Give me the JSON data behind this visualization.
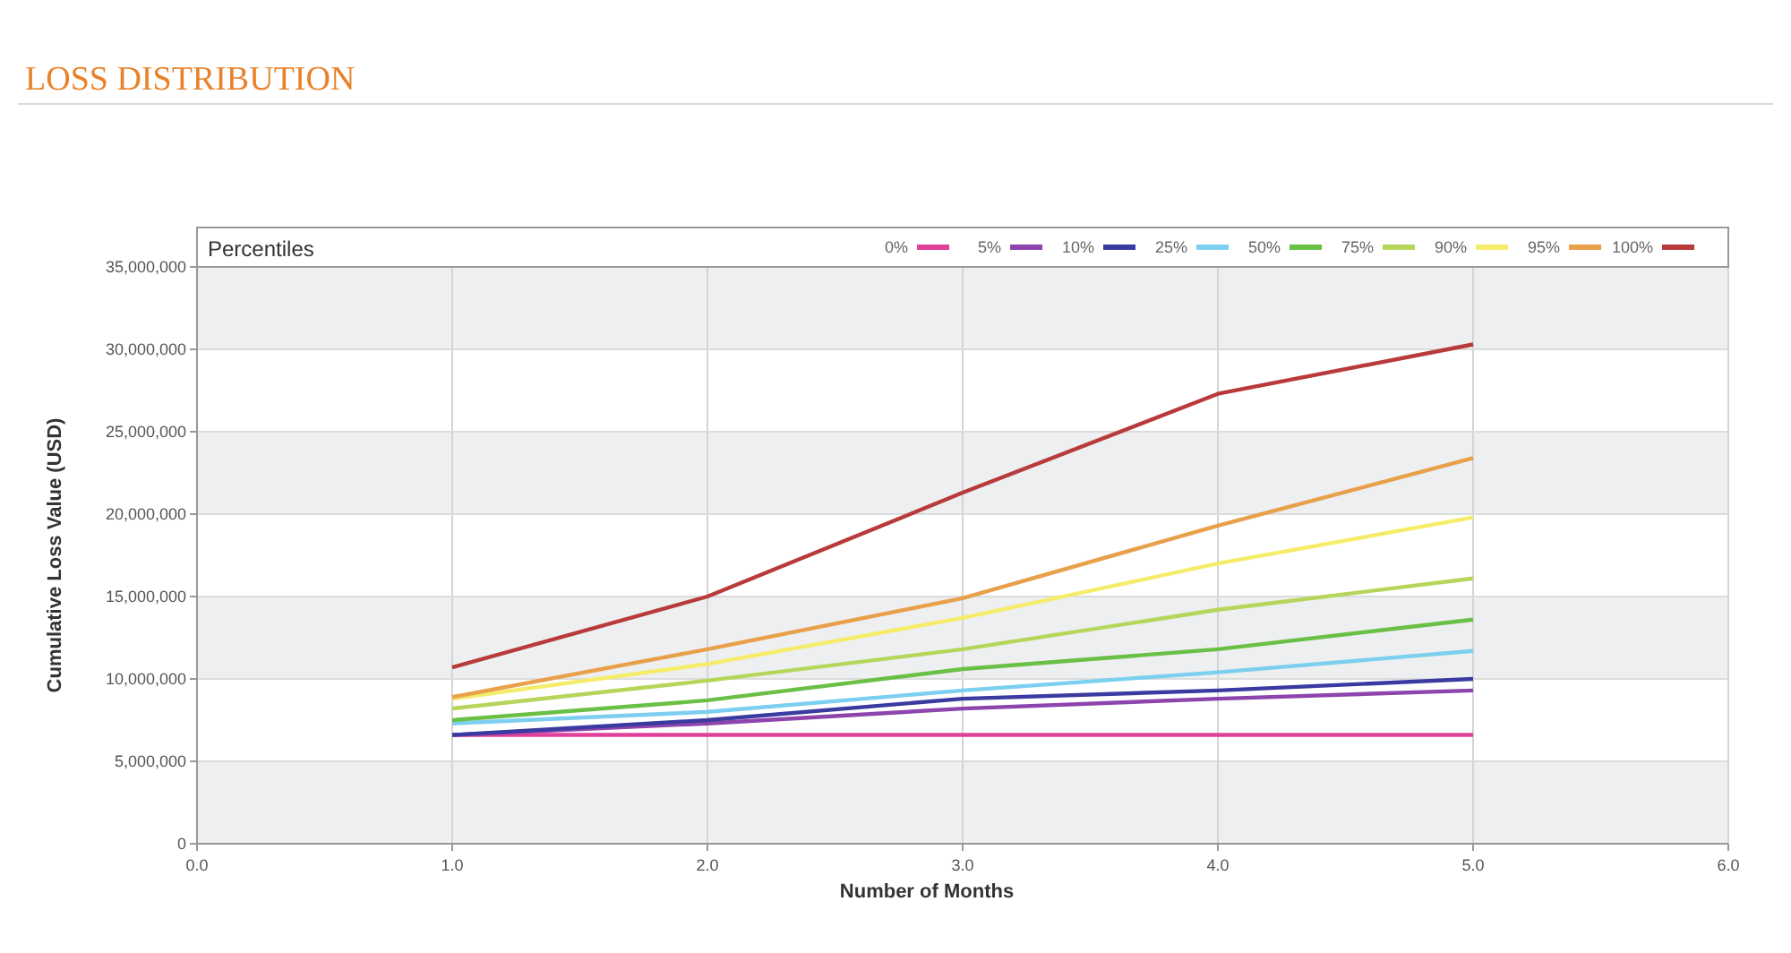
{
  "chart_data": {
    "type": "line",
    "title": "LOSS DISTRIBUTION",
    "legend_title": "Percentiles",
    "xlabel": "Number of Months",
    "ylabel": "Cumulative Loss Value (USD)",
    "x": [
      1,
      2,
      3,
      4,
      5
    ],
    "series": [
      {
        "name": "0%",
        "color": "#e0409a",
        "values": [
          6600000,
          6600000,
          6600000,
          6600000,
          6600000
        ]
      },
      {
        "name": "5%",
        "color": "#8e44ad",
        "values": [
          6600000,
          7300000,
          8200000,
          8800000,
          9300000
        ]
      },
      {
        "name": "10%",
        "color": "#3a3aa0",
        "values": [
          6600000,
          7500000,
          8800000,
          9300000,
          10000000
        ]
      },
      {
        "name": "25%",
        "color": "#7dcff0",
        "values": [
          7300000,
          8000000,
          9300000,
          10400000,
          11700000
        ]
      },
      {
        "name": "50%",
        "color": "#6abf45",
        "values": [
          7500000,
          8700000,
          10600000,
          11800000,
          13600000
        ]
      },
      {
        "name": "75%",
        "color": "#b5d65a",
        "values": [
          8200000,
          9900000,
          11800000,
          14200000,
          16100000
        ]
      },
      {
        "name": "90%",
        "color": "#f5ec6a",
        "values": [
          8800000,
          10900000,
          13700000,
          17000000,
          19800000
        ]
      },
      {
        "name": "95%",
        "color": "#e8a04a",
        "values": [
          8900000,
          11800000,
          14900000,
          19300000,
          23400000
        ]
      },
      {
        "name": "100%",
        "color": "#b83a3a",
        "values": [
          10700000,
          15000000,
          21300000,
          27300000,
          30300000
        ]
      }
    ],
    "xlim": [
      0,
      6
    ],
    "xticks": [
      {
        "value": 0,
        "label": "0.0"
      },
      {
        "value": 1,
        "label": "1.0"
      },
      {
        "value": 2,
        "label": "2.0"
      },
      {
        "value": 3,
        "label": "3.0"
      },
      {
        "value": 4,
        "label": "4.0"
      },
      {
        "value": 5,
        "label": "5.0"
      },
      {
        "value": 6,
        "label": "6.0"
      }
    ],
    "ylim": [
      0,
      35000000
    ],
    "yticks": [
      {
        "value": 0,
        "label": "0"
      },
      {
        "value": 5000000,
        "label": "5,000,000"
      },
      {
        "value": 10000000,
        "label": "10,000,000"
      },
      {
        "value": 15000000,
        "label": "15,000,000"
      },
      {
        "value": 20000000,
        "label": "20,000,000"
      },
      {
        "value": 25000000,
        "label": "25,000,000"
      },
      {
        "value": 30000000,
        "label": "30,000,000"
      },
      {
        "value": 35000000,
        "label": "35,000,000"
      }
    ],
    "grid": true,
    "legend": "top right",
    "marker": "none",
    "line_style": "solid"
  }
}
